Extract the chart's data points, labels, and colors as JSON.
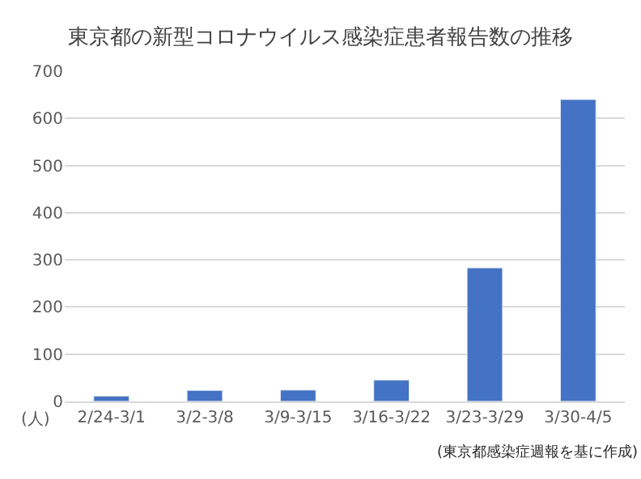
{
  "chart_data": {
    "type": "bar",
    "title": "東京都の新型コロナウイルス感染症患者報告数の推移",
    "ylabel": "(人)",
    "categories": [
      "2/24-3/1",
      "3/2-3/8",
      "3/9-3/15",
      "3/16-3/22",
      "3/23-3/29",
      "3/30-4/5"
    ],
    "values": [
      11,
      23,
      24,
      45,
      283,
      640
    ],
    "color": "#4472c4",
    "ylim": [
      0,
      700
    ],
    "yticks": [
      0,
      100,
      200,
      300,
      400,
      500,
      600,
      700
    ],
    "grid": "y",
    "annotations": [
      "(東京都感染症週報を基に作成)"
    ]
  }
}
